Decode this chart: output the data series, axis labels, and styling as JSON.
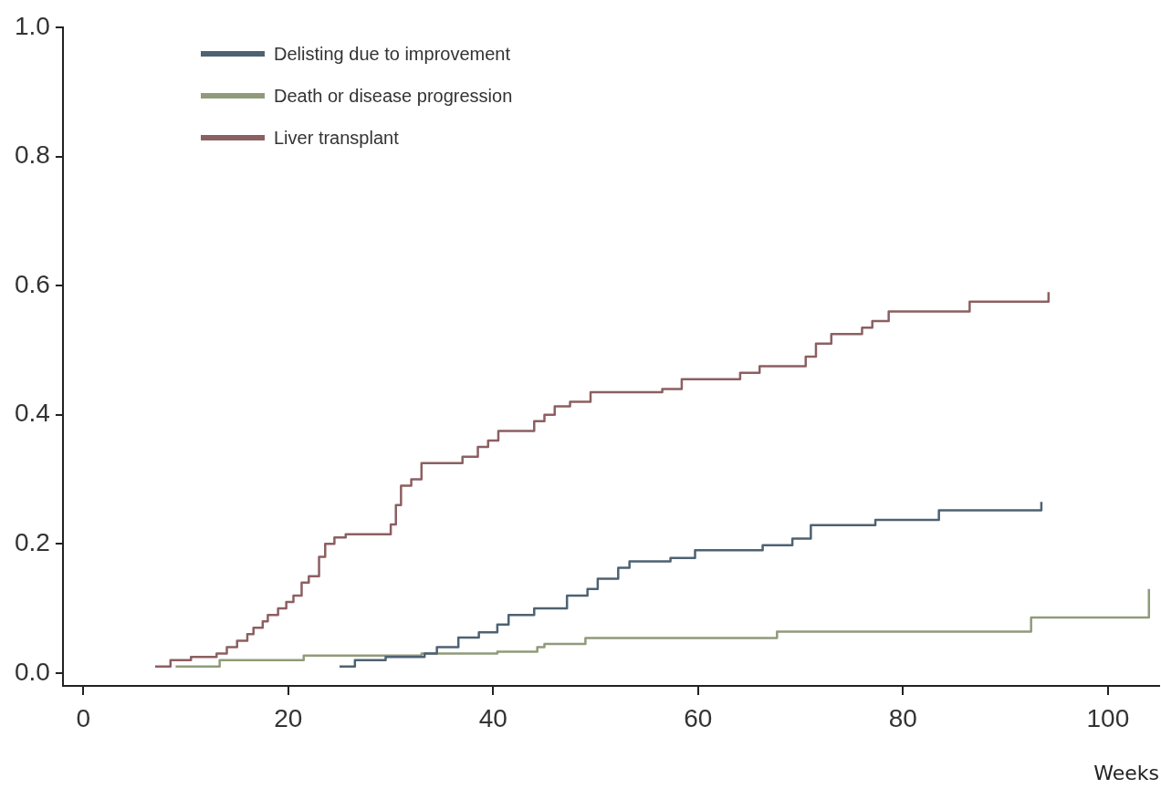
{
  "chart_data": {
    "type": "step",
    "xlabel": "Weeks",
    "xlim": [
      -2,
      105
    ],
    "ylim": [
      -0.02,
      1.0
    ],
    "xticks": [
      0,
      20,
      40,
      60,
      80,
      100
    ],
    "yticks": [
      {
        "value": 0,
        "label": "0.0"
      },
      {
        "value": 0.2,
        "label": "0.2"
      },
      {
        "value": 0.4,
        "label": "0.4"
      },
      {
        "value": 0.6,
        "label": "0.6"
      },
      {
        "value": 0.8,
        "label": "0.8"
      },
      {
        "value": 1,
        "label": "1.0"
      }
    ],
    "grid": false,
    "legend": "top left",
    "marker": "none",
    "line_style": "solid",
    "series": [
      {
        "name": "Delisting due to improvement",
        "color": "#4e6272",
        "x": [
          25,
          26.5,
          29.5,
          33.3,
          34.5,
          36.6,
          38.6,
          40.4,
          41.5,
          44,
          47.2,
          49.2,
          50.2,
          52.2,
          53.3,
          57.3,
          59.7,
          66.3,
          69.2,
          71,
          77.3,
          83.5,
          93.5,
          93.5
        ],
        "values": [
          0.01,
          0.02,
          0.025,
          0.03,
          0.04,
          0.055,
          0.063,
          0.075,
          0.09,
          0.1,
          0.12,
          0.13,
          0.146,
          0.163,
          0.173,
          0.178,
          0.19,
          0.198,
          0.208,
          0.229,
          0.237,
          0.252,
          0.252,
          0.265
        ]
      },
      {
        "name": "Death or disease progression",
        "color": "#8f9b7a",
        "x": [
          9,
          13.3,
          21.5,
          33,
          40.4,
          44.3,
          45,
          49,
          67.7,
          92.5,
          104,
          104
        ],
        "values": [
          0.01,
          0.02,
          0.027,
          0.03,
          0.033,
          0.04,
          0.045,
          0.054,
          0.064,
          0.086,
          0.086,
          0.13
        ]
      },
      {
        "name": "Liver transplant",
        "color": "#8c5f62",
        "x": [
          7,
          8.5,
          10.5,
          13,
          14,
          15,
          16,
          16.6,
          17.5,
          18,
          19,
          19.8,
          20.5,
          21.3,
          22,
          23,
          23.6,
          24.5,
          25.6,
          30,
          30.5,
          31,
          32,
          33,
          37,
          38.5,
          39.5,
          40.5,
          44,
          45,
          46,
          47.5,
          49.5,
          56.5,
          58.4,
          64.1,
          66,
          70.5,
          71.5,
          73,
          76,
          77,
          78.6,
          86.5,
          94.2,
          94.2
        ],
        "values": [
          0.01,
          0.02,
          0.025,
          0.03,
          0.04,
          0.05,
          0.06,
          0.07,
          0.08,
          0.09,
          0.1,
          0.11,
          0.12,
          0.14,
          0.15,
          0.18,
          0.2,
          0.21,
          0.215,
          0.23,
          0.26,
          0.29,
          0.3,
          0.325,
          0.335,
          0.35,
          0.36,
          0.375,
          0.39,
          0.4,
          0.413,
          0.42,
          0.435,
          0.44,
          0.455,
          0.465,
          0.475,
          0.49,
          0.51,
          0.525,
          0.535,
          0.545,
          0.56,
          0.575,
          0.575,
          0.59
        ]
      }
    ]
  }
}
